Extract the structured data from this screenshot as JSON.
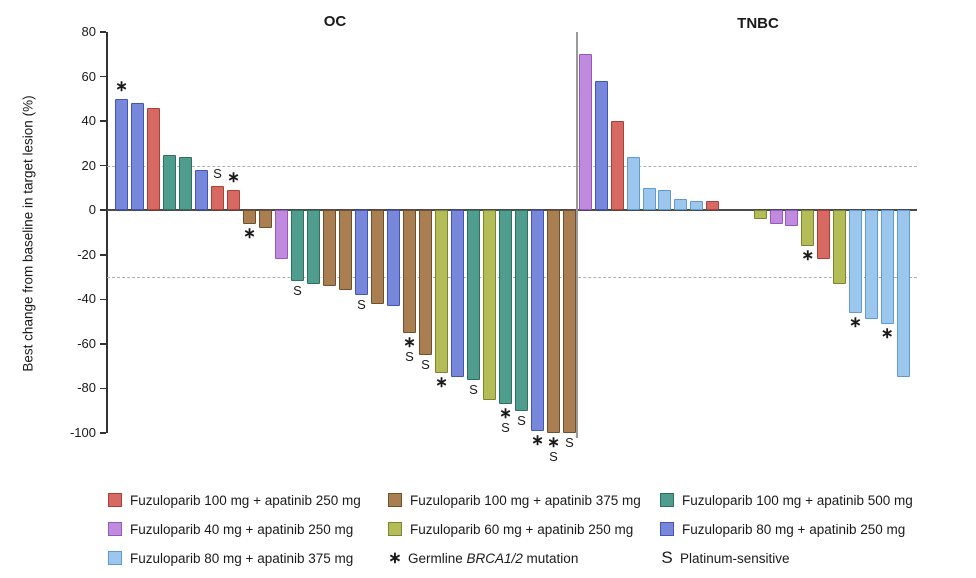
{
  "chart_data": {
    "type": "bar",
    "kind": "waterfall",
    "ylabel": "Best change from baseline in target lesion (%)",
    "ylim": [
      -100,
      80
    ],
    "yticks": [
      80,
      60,
      40,
      20,
      0,
      -20,
      -40,
      -60,
      -80,
      -100
    ],
    "threshold_lines": [
      20,
      -30
    ],
    "grid": "off",
    "legend_position": "bottom",
    "colors": {
      "red": {
        "fill": "#D66A63",
        "border": "#B03E38"
      },
      "purple": {
        "fill": "#C08BDE",
        "border": "#9659BB"
      },
      "sky": {
        "fill": "#9DC6EC",
        "border": "#5E9BD6"
      },
      "brown": {
        "fill": "#A97E50",
        "border": "#70502C"
      },
      "yellowgreen": {
        "fill": "#B4BC57",
        "border": "#7C8433"
      },
      "teal": {
        "fill": "#4E9D8E",
        "border": "#2E6F62"
      },
      "blueviolet": {
        "fill": "#7787D9",
        "border": "#4355B8"
      }
    },
    "groups": [
      {
        "name": "OC",
        "bars": [
          {
            "slot": 0,
            "value": 50,
            "color": "blueviolet",
            "flags": [
              "*"
            ]
          },
          {
            "slot": 1,
            "value": 48,
            "color": "blueviolet",
            "flags": []
          },
          {
            "slot": 2,
            "value": 46,
            "color": "red",
            "flags": []
          },
          {
            "slot": 3,
            "value": 25,
            "color": "teal",
            "flags": []
          },
          {
            "slot": 4,
            "value": 24,
            "color": "teal",
            "flags": []
          },
          {
            "slot": 5,
            "value": 18,
            "color": "blueviolet",
            "flags": []
          },
          {
            "slot": 6,
            "value": 11,
            "color": "red",
            "flags": [
              "S"
            ]
          },
          {
            "slot": 7,
            "value": 9,
            "color": "red",
            "flags": [
              "*"
            ]
          },
          {
            "slot": 8,
            "value": -6,
            "color": "brown",
            "flags": [
              "*"
            ]
          },
          {
            "slot": 9,
            "value": -8,
            "color": "brown",
            "flags": []
          },
          {
            "slot": 10,
            "value": -22,
            "color": "purple",
            "flags": []
          },
          {
            "slot": 11,
            "value": -32,
            "color": "teal",
            "flags": [
              "S"
            ]
          },
          {
            "slot": 12,
            "value": -33,
            "color": "teal",
            "flags": []
          },
          {
            "slot": 13,
            "value": -34,
            "color": "brown",
            "flags": []
          },
          {
            "slot": 14,
            "value": -36,
            "color": "brown",
            "flags": []
          },
          {
            "slot": 15,
            "value": -38,
            "color": "blueviolet",
            "flags": [
              "S"
            ]
          },
          {
            "slot": 16,
            "value": -42,
            "color": "brown",
            "flags": []
          },
          {
            "slot": 17,
            "value": -43,
            "color": "blueviolet",
            "flags": []
          },
          {
            "slot": 18,
            "value": -55,
            "color": "brown",
            "flags": [
              "*",
              "S"
            ]
          },
          {
            "slot": 19,
            "value": -65,
            "color": "brown",
            "flags": [
              "S"
            ]
          },
          {
            "slot": 20,
            "value": -73,
            "color": "yellowgreen",
            "flags": [
              "*"
            ]
          },
          {
            "slot": 21,
            "value": -75,
            "color": "blueviolet",
            "flags": []
          },
          {
            "slot": 22,
            "value": -76,
            "color": "teal",
            "flags": [
              "S"
            ]
          },
          {
            "slot": 23,
            "value": -85,
            "color": "yellowgreen",
            "flags": []
          },
          {
            "slot": 24,
            "value": -87,
            "color": "teal",
            "flags": [
              "*",
              "S"
            ]
          },
          {
            "slot": 25,
            "value": -90,
            "color": "teal",
            "flags": [
              "S"
            ]
          },
          {
            "slot": 26,
            "value": -99,
            "color": "blueviolet",
            "flags": [
              "*"
            ]
          },
          {
            "slot": 27,
            "value": -100,
            "color": "brown",
            "flags": [
              "*",
              "S"
            ]
          },
          {
            "slot": 28,
            "value": -100,
            "color": "brown",
            "flags": [
              "S"
            ]
          }
        ]
      },
      {
        "name": "TNBC",
        "bars": [
          {
            "slot": 0,
            "value": 70,
            "color": "purple",
            "flags": []
          },
          {
            "slot": 1,
            "value": 58,
            "color": "blueviolet",
            "flags": []
          },
          {
            "slot": 2,
            "value": 40,
            "color": "red",
            "flags": []
          },
          {
            "slot": 3,
            "value": 24,
            "color": "sky",
            "flags": []
          },
          {
            "slot": 4,
            "value": 10,
            "color": "sky",
            "flags": []
          },
          {
            "slot": 5,
            "value": 9,
            "color": "sky",
            "flags": []
          },
          {
            "slot": 6,
            "value": 5,
            "color": "sky",
            "flags": []
          },
          {
            "slot": 7,
            "value": 4,
            "color": "sky",
            "flags": []
          },
          {
            "slot": 8,
            "value": 4,
            "color": "red",
            "flags": []
          },
          {
            "slot": 11,
            "value": -4,
            "color": "yellowgreen",
            "flags": []
          },
          {
            "slot": 12,
            "value": -6,
            "color": "purple",
            "flags": []
          },
          {
            "slot": 13,
            "value": -7,
            "color": "purple",
            "flags": []
          },
          {
            "slot": 14,
            "value": -16,
            "color": "yellowgreen",
            "flags": [
              "*"
            ]
          },
          {
            "slot": 15,
            "value": -22,
            "color": "red",
            "flags": []
          },
          {
            "slot": 16,
            "value": -33,
            "color": "yellowgreen",
            "flags": []
          },
          {
            "slot": 17,
            "value": -46,
            "color": "sky",
            "flags": [
              "*"
            ]
          },
          {
            "slot": 18,
            "value": -49,
            "color": "sky",
            "flags": []
          },
          {
            "slot": 19,
            "value": -51,
            "color": "sky",
            "flags": [
              "*"
            ]
          },
          {
            "slot": 20,
            "value": -75,
            "color": "sky",
            "flags": []
          }
        ]
      }
    ],
    "legend": {
      "color_entries": [
        {
          "col": 0,
          "row": 0,
          "color": "red",
          "label": "Fuzuloparib 100 mg + apatinib 250 mg"
        },
        {
          "col": 1,
          "row": 0,
          "color": "brown",
          "label": "Fuzuloparib 100 mg + apatinib 375 mg"
        },
        {
          "col": 2,
          "row": 0,
          "color": "teal",
          "label": "Fuzuloparib 100 mg + apatinib 500 mg"
        },
        {
          "col": 0,
          "row": 1,
          "color": "purple",
          "label": "Fuzuloparib 40 mg + apatinib 250 mg"
        },
        {
          "col": 1,
          "row": 1,
          "color": "yellowgreen",
          "label": "Fuzuloparib 60 mg + apatinib 250 mg"
        },
        {
          "col": 2,
          "row": 1,
          "color": "blueviolet",
          "label": "Fuzuloparib 80 mg + apatinib 250 mg"
        },
        {
          "col": 0,
          "row": 2,
          "color": "sky",
          "label": "Fuzuloparib 80 mg + apatinib 375 mg"
        }
      ],
      "symbol_entries": [
        {
          "col": 1,
          "row": 2,
          "symbol": "*",
          "prefix": "Germline ",
          "italic": "BRCA1/2",
          "suffix": " mutation"
        },
        {
          "col": 2,
          "row": 2,
          "symbol": "S",
          "prefix": "Platinum-sensitive",
          "italic": "",
          "suffix": ""
        }
      ]
    }
  }
}
